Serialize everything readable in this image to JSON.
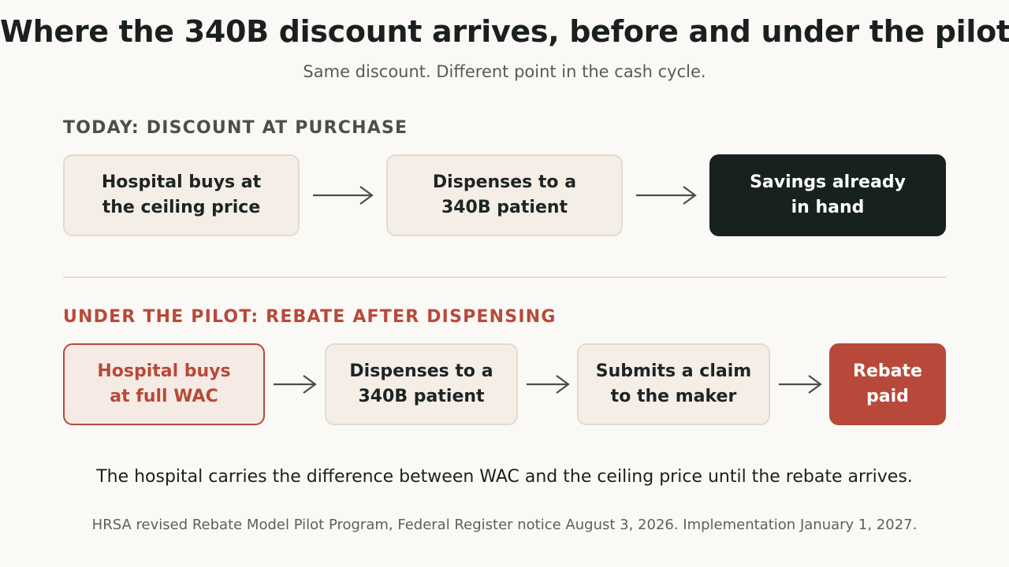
{
  "title": "Where the 340B discount arrives, before and under the pilot",
  "subtitle": "Same discount. Different point in the cash cycle.",
  "today": {
    "label": "TODAY: DISCOUNT AT PURCHASE",
    "steps": [
      {
        "line1": "Hospital buys at",
        "line2": "the ceiling price"
      },
      {
        "line1": "Dispenses to a",
        "line2": "340B patient"
      },
      {
        "line1": "Savings already",
        "line2": "in hand"
      }
    ]
  },
  "pilot": {
    "label": "UNDER THE PILOT: REBATE AFTER DISPENSING",
    "steps": [
      {
        "line1": "Hospital buys",
        "line2": "at full WAC"
      },
      {
        "line1": "Dispenses to a",
        "line2": "340B patient"
      },
      {
        "line1": "Submits a claim",
        "line2": "to the maker"
      },
      {
        "line1": "Rebate",
        "line2": "paid"
      }
    ]
  },
  "takeaway": "The hospital carries the difference between WAC and the ceiling price until the rebate arrives.",
  "source": "HRSA revised Rebate Model Pilot Program, Federal Register notice August 3, 2026. Implementation January 1, 2027.",
  "colors": {
    "background": "#fbf9f5",
    "accent_red": "#b8493a",
    "dark": "#172220",
    "neutral_box": "#f4eee6"
  },
  "icons": {
    "arrow": "arrow-right-icon"
  }
}
